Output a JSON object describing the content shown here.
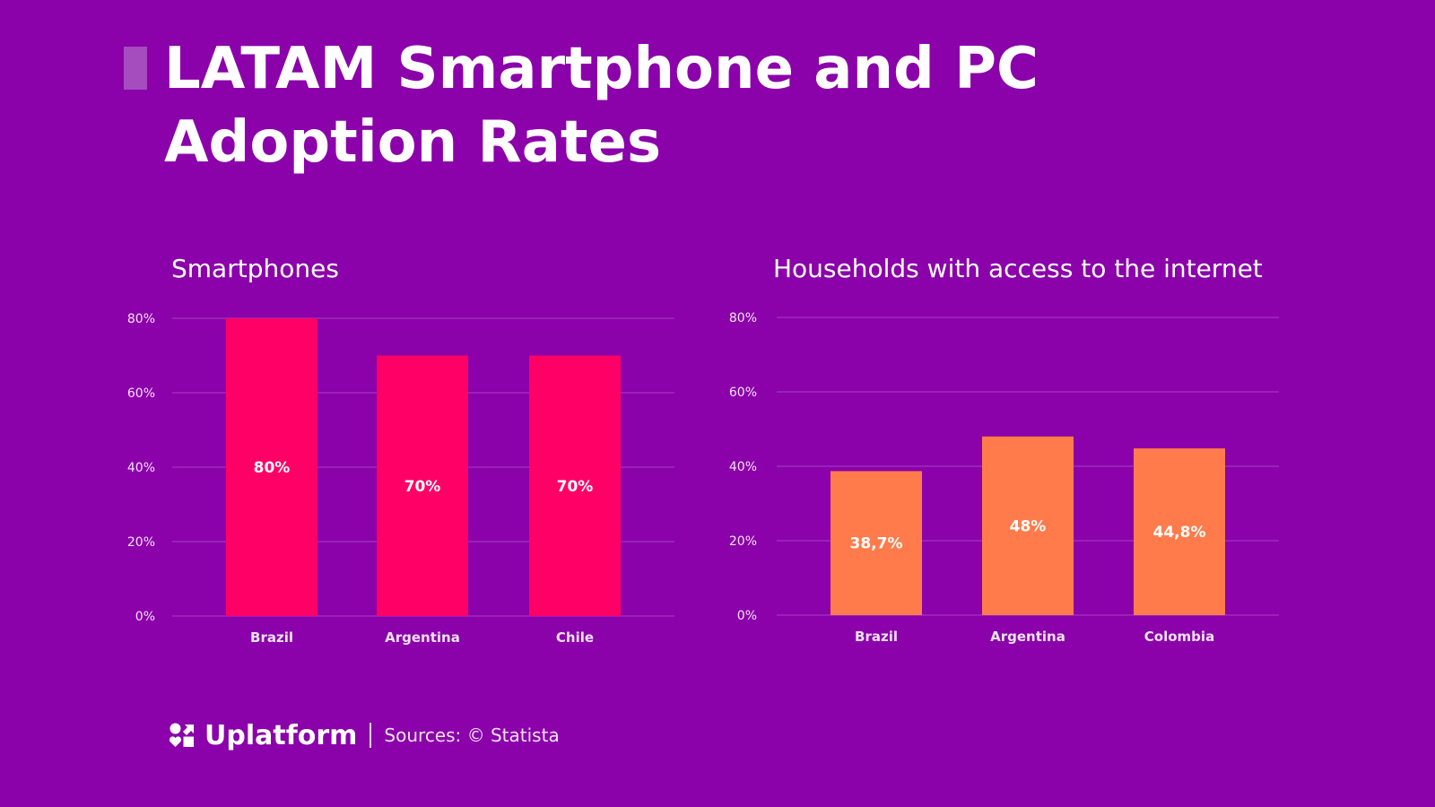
{
  "header": {
    "title": "LATAM Smartphone and PC Adoption Rates"
  },
  "colors": {
    "background": "#8b01aa",
    "accent_bar": "#a54cbf",
    "smartphone_bar": "#ff0066",
    "internet_bar": "#ff7b4b",
    "gridline": "#a544c4",
    "text": "#ffffff"
  },
  "chart_data": [
    {
      "type": "bar",
      "title": "Smartphones",
      "categories": [
        "Brazil",
        "Argentina",
        "Chile"
      ],
      "values": [
        80,
        70,
        70
      ],
      "value_labels": [
        "80%",
        "70%",
        "70%"
      ],
      "xlabel": "",
      "ylabel": "",
      "ylim": [
        0,
        80
      ],
      "yticks": [
        0,
        20,
        40,
        60,
        80
      ],
      "ytick_labels": [
        "0%",
        "20%",
        "40%",
        "60%",
        "80%"
      ],
      "grid": true,
      "legend": "none",
      "color": "#ff0066"
    },
    {
      "type": "bar",
      "title": "Households with access to the internet",
      "categories": [
        "Brazil",
        "Argentina",
        "Colombia"
      ],
      "values": [
        38.7,
        48,
        44.8
      ],
      "value_labels": [
        "38,7%",
        "48%",
        "44,8%"
      ],
      "xlabel": "",
      "ylabel": "",
      "ylim": [
        0,
        80
      ],
      "yticks": [
        0,
        20,
        40,
        60,
        80
      ],
      "ytick_labels": [
        "0%",
        "20%",
        "40%",
        "60%",
        "80%"
      ],
      "grid": true,
      "legend": "none",
      "color": "#ff7b4b"
    }
  ],
  "footer": {
    "brand": "Uplatform",
    "logo_icon": "uplatform-logo-icon",
    "sources": "Sources: © Statista"
  }
}
